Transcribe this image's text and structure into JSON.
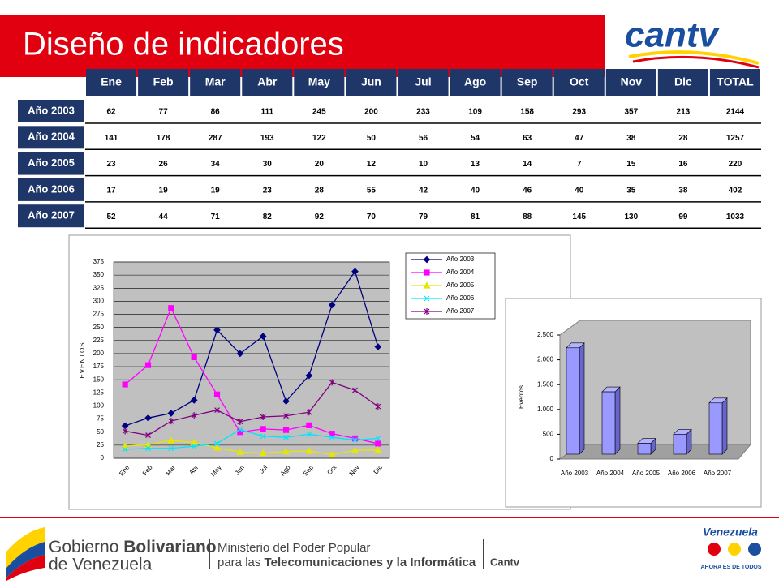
{
  "header": {
    "title": "Diseño de indicadores",
    "logo": "cantv"
  },
  "table": {
    "columns": [
      "Ene",
      "Feb",
      "Mar",
      "Abr",
      "May",
      "Jun",
      "Jul",
      "Ago",
      "Sep",
      "Oct",
      "Nov",
      "Dic",
      "TOTAL"
    ],
    "rows": [
      {
        "label": "Año 2003",
        "values": [
          62,
          77,
          86,
          111,
          245,
          200,
          233,
          109,
          158,
          293,
          357,
          213,
          2144
        ]
      },
      {
        "label": "Año 2004",
        "values": [
          141,
          178,
          287,
          193,
          122,
          50,
          56,
          54,
          63,
          47,
          38,
          28,
          1257
        ]
      },
      {
        "label": "Año 2005",
        "values": [
          23,
          26,
          34,
          30,
          20,
          12,
          10,
          13,
          14,
          7,
          15,
          16,
          220
        ]
      },
      {
        "label": "Año 2006",
        "values": [
          17,
          19,
          19,
          23,
          28,
          55,
          42,
          40,
          46,
          40,
          35,
          38,
          402
        ]
      },
      {
        "label": "Año 2007",
        "values": [
          52,
          44,
          71,
          82,
          92,
          70,
          79,
          81,
          88,
          145,
          130,
          99,
          1033
        ]
      }
    ]
  },
  "chart_data": [
    {
      "type": "line",
      "y_label": "EVENTOS",
      "categories": [
        "Ene",
        "Feb",
        "Mar",
        "Abr",
        "May",
        "Jun",
        "Jul",
        "Ago",
        "Sep",
        "Oct",
        "Nov",
        "Dic"
      ],
      "ylim": [
        0,
        375
      ],
      "yticks": [
        0,
        25,
        50,
        75,
        100,
        125,
        150,
        175,
        200,
        225,
        250,
        275,
        300,
        325,
        350,
        375
      ],
      "grid": true,
      "series": [
        {
          "name": "Año 2003",
          "color": "#000080",
          "marker": "diamond",
          "values": [
            62,
            77,
            86,
            111,
            245,
            200,
            233,
            109,
            158,
            293,
            357,
            213
          ]
        },
        {
          "name": "Año 2004",
          "color": "#ff00ff",
          "marker": "square",
          "values": [
            141,
            178,
            287,
            193,
            122,
            50,
            56,
            54,
            63,
            47,
            38,
            28
          ]
        },
        {
          "name": "Año 2005",
          "color": "#e6e600",
          "marker": "triangle",
          "values": [
            23,
            26,
            34,
            30,
            20,
            12,
            10,
            13,
            14,
            7,
            15,
            16
          ]
        },
        {
          "name": "Año 2006",
          "color": "#00e5ff",
          "marker": "cross",
          "values": [
            17,
            19,
            19,
            23,
            28,
            55,
            42,
            40,
            46,
            40,
            35,
            38
          ]
        },
        {
          "name": "Año 2007",
          "color": "#800080",
          "marker": "star",
          "values": [
            52,
            44,
            71,
            82,
            92,
            70,
            79,
            81,
            88,
            145,
            130,
            99
          ]
        }
      ]
    },
    {
      "type": "bar3d",
      "y_label": "Eventos",
      "color": "#9999ff",
      "categories": [
        "Año 2003",
        "Año 2004",
        "Año 2005",
        "Año 2006",
        "Año 2007"
      ],
      "values": [
        2144,
        1257,
        220,
        402,
        1033
      ],
      "ylim": [
        0,
        2500
      ],
      "yticks": [
        0,
        500,
        {
          "value": 1000,
          "label": "1.000"
        },
        {
          "value": 1500,
          "label": "1.500"
        },
        {
          "value": 2000,
          "label": "2.000"
        },
        {
          "value": 2500,
          "label": "2.500"
        }
      ]
    }
  ],
  "footer": {
    "gov_a": "Gobierno",
    "gov_b": "Bolivariano",
    "gov_c": "de Venezuela",
    "min_a": "Ministerio del Poder Popular",
    "min_b": "para las",
    "min_c": "Telecomunicaciones y la Informática",
    "cantv": "Cantv",
    "venezuela": "Venezuela",
    "slogan": "AHORA ES DE TODOS"
  }
}
